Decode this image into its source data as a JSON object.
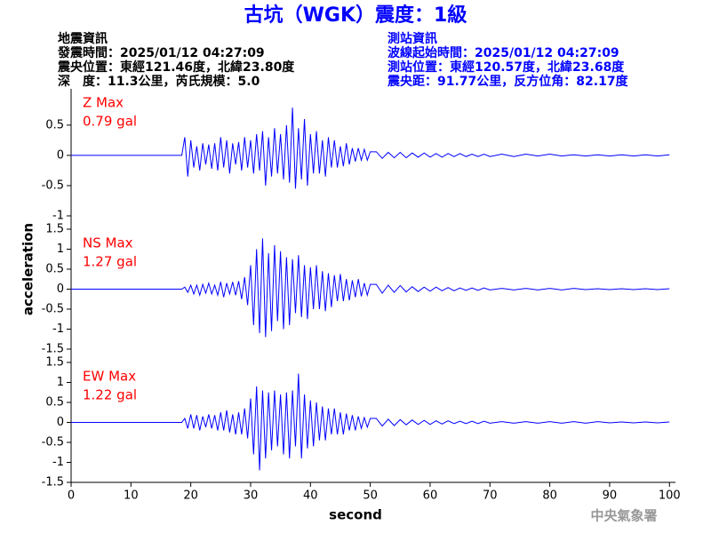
{
  "header": {
    "title": "古坑（WGK）震度：1級",
    "left": [
      "地震資訊",
      "發震時間：2025/01/12 04:27:09",
      "震央位置：東經121.46度，北緯23.80度",
      "深　度：11.3公里，芮氏規模：5.0"
    ],
    "right": [
      "測站資訊",
      "波線起始時間：2025/01/12 04:27:09",
      "測站位置：東經120.57度，北緯23.68度",
      "震央距：91.77公里，反方位角：82.17度"
    ],
    "ylabel": "acceleration",
    "xlabel": "second",
    "watermark": "中央氣象署"
  },
  "chart_data": [
    {
      "type": "line",
      "label": "Z Max",
      "max_label": "0.79 gal",
      "color": "#0000ff",
      "xlim": [
        0,
        101
      ],
      "ylim": [
        -1,
        1.1
      ],
      "yticks": [
        -1,
        -0.5,
        0,
        0.5
      ],
      "x": [
        0,
        10,
        18.5,
        19,
        19.5,
        20,
        20.5,
        21,
        21.5,
        22,
        22.5,
        23,
        23.5,
        24,
        24.5,
        25,
        25.5,
        26,
        26.5,
        27,
        27.5,
        28,
        28.5,
        29,
        29.5,
        30,
        30.5,
        31,
        31.5,
        32,
        32.5,
        33,
        33.5,
        34,
        34.5,
        35,
        35.5,
        36,
        36.5,
        37,
        37.5,
        38,
        38.5,
        39,
        39.5,
        40,
        40.5,
        41,
        41.5,
        42,
        42.5,
        43,
        43.5,
        44,
        44.5,
        45,
        45.5,
        46,
        46.5,
        47,
        47.5,
        48,
        48.5,
        49,
        49.5,
        50,
        51,
        52,
        53,
        54,
        55,
        56,
        57,
        58,
        59,
        60,
        61,
        62,
        63,
        64,
        65,
        66,
        67,
        68,
        69,
        70,
        72,
        74,
        76,
        78,
        80,
        82,
        84,
        86,
        88,
        90,
        92,
        94,
        96,
        98,
        100
      ],
      "values": [
        0,
        0,
        0,
        0.3,
        -0.35,
        0.25,
        -0.2,
        0.15,
        -0.25,
        0.2,
        -0.15,
        0.18,
        -0.22,
        0.2,
        -0.25,
        0.3,
        -0.2,
        0.25,
        -0.3,
        0.2,
        -0.15,
        0.22,
        -0.25,
        0.3,
        -0.2,
        0.25,
        -0.3,
        0.35,
        -0.25,
        0.4,
        -0.5,
        0.3,
        -0.35,
        0.45,
        -0.3,
        0.35,
        -0.4,
        0.5,
        -0.45,
        0.79,
        -0.55,
        0.45,
        -0.4,
        0.6,
        -0.5,
        0.35,
        -0.3,
        0.4,
        -0.3,
        0.25,
        -0.35,
        0.3,
        -0.2,
        0.25,
        -0.2,
        0.15,
        -0.18,
        0.2,
        -0.15,
        0.12,
        -0.1,
        0.12,
        -0.08,
        0.1,
        -0.08,
        0.06,
        0.06,
        -0.05,
        0.05,
        -0.04,
        0.05,
        -0.04,
        0.04,
        -0.03,
        0.04,
        -0.03,
        0.03,
        -0.03,
        0.03,
        -0.02,
        0.03,
        -0.02,
        0.02,
        -0.02,
        0.02,
        -0.02,
        0.02,
        -0.02,
        0.02,
        -0.01,
        0.02,
        -0.01,
        0.01,
        -0.01,
        0.01,
        -0.01,
        0.01,
        -0.01,
        0.01,
        -0.01,
        0.01
      ]
    },
    {
      "type": "line",
      "label": "NS Max",
      "max_label": "1.27 gal",
      "color": "#0000ff",
      "xlim": [
        0,
        101
      ],
      "ylim": [
        -1.5,
        1.5
      ],
      "yticks": [
        -1.5,
        -1,
        -0.5,
        0,
        0.5,
        1,
        1.5
      ],
      "x": [
        0,
        10,
        18.5,
        19,
        19.5,
        20,
        20.5,
        21,
        21.5,
        22,
        22.5,
        23,
        23.5,
        24,
        24.5,
        25,
        25.5,
        26,
        26.5,
        27,
        27.5,
        28,
        28.5,
        29,
        29.5,
        30,
        30.5,
        31,
        31.5,
        32,
        32.5,
        33,
        33.5,
        34,
        34.5,
        35,
        35.5,
        36,
        36.5,
        37,
        37.5,
        38,
        38.5,
        39,
        39.5,
        40,
        40.5,
        41,
        41.5,
        42,
        42.5,
        43,
        43.5,
        44,
        44.5,
        45,
        45.5,
        46,
        46.5,
        47,
        47.5,
        48,
        48.5,
        49,
        49.5,
        50,
        51,
        52,
        53,
        54,
        55,
        56,
        57,
        58,
        59,
        60,
        61,
        62,
        63,
        64,
        65,
        66,
        67,
        68,
        69,
        70,
        72,
        74,
        76,
        78,
        80,
        82,
        84,
        86,
        88,
        90,
        92,
        94,
        96,
        98,
        100
      ],
      "values": [
        0,
        0,
        0,
        0.05,
        -0.08,
        0.1,
        -0.12,
        0.1,
        -0.15,
        0.12,
        -0.1,
        0.15,
        -0.12,
        0.1,
        -0.15,
        0.18,
        -0.2,
        0.15,
        -0.12,
        0.18,
        -0.15,
        0.2,
        -0.25,
        0.3,
        -0.4,
        0.6,
        -0.9,
        1.0,
        -1.1,
        1.27,
        -1.2,
        0.9,
        -1.05,
        1.1,
        -0.8,
        0.95,
        -1.0,
        0.8,
        -0.9,
        0.75,
        -0.6,
        0.85,
        -0.7,
        0.6,
        -0.75,
        0.55,
        -0.5,
        0.6,
        -0.5,
        0.45,
        -0.55,
        0.4,
        -0.45,
        0.35,
        -0.3,
        0.38,
        -0.3,
        0.25,
        -0.28,
        0.22,
        -0.2,
        0.25,
        -0.18,
        0.15,
        -0.15,
        0.12,
        0.12,
        -0.1,
        0.1,
        -0.08,
        0.09,
        -0.07,
        0.06,
        -0.06,
        0.05,
        -0.05,
        0.05,
        -0.04,
        0.04,
        -0.04,
        0.03,
        -0.03,
        0.03,
        -0.03,
        0.03,
        -0.02,
        0.02,
        -0.02,
        0.02,
        -0.02,
        0.02,
        -0.02,
        0.02,
        -0.01,
        0.01,
        -0.01,
        0.01,
        -0.01,
        0.01,
        -0.01,
        0.01
      ]
    },
    {
      "type": "line",
      "label": "EW Max",
      "max_label": "1.22 gal",
      "color": "#0000ff",
      "xlim": [
        0,
        101
      ],
      "ylim": [
        -1.5,
        1.5
      ],
      "yticks": [
        -1.5,
        -1,
        -0.5,
        0,
        0.5,
        1,
        1.5
      ],
      "xticks": [
        0,
        10,
        20,
        30,
        40,
        50,
        60,
        70,
        80,
        90,
        100
      ],
      "x": [
        0,
        10,
        18.5,
        19,
        19.5,
        20,
        20.5,
        21,
        21.5,
        22,
        22.5,
        23,
        23.5,
        24,
        24.5,
        25,
        25.5,
        26,
        26.5,
        27,
        27.5,
        28,
        28.5,
        29,
        29.5,
        30,
        30.5,
        31,
        31.5,
        32,
        32.5,
        33,
        33.5,
        34,
        34.5,
        35,
        35.5,
        36,
        36.5,
        37,
        37.5,
        38,
        38.5,
        39,
        39.5,
        40,
        40.5,
        41,
        41.5,
        42,
        42.5,
        43,
        43.5,
        44,
        44.5,
        45,
        45.5,
        46,
        46.5,
        47,
        47.5,
        48,
        48.5,
        49,
        49.5,
        50,
        51,
        52,
        53,
        54,
        55,
        56,
        57,
        58,
        59,
        60,
        61,
        62,
        63,
        64,
        65,
        66,
        67,
        68,
        69,
        70,
        72,
        74,
        76,
        78,
        80,
        82,
        84,
        86,
        88,
        90,
        92,
        94,
        96,
        98,
        100
      ],
      "values": [
        0,
        0,
        0,
        0.1,
        -0.15,
        0.2,
        -0.15,
        0.18,
        -0.2,
        0.15,
        -0.12,
        0.2,
        -0.15,
        0.18,
        -0.2,
        0.25,
        -0.2,
        0.3,
        -0.25,
        0.2,
        -0.3,
        0.25,
        -0.3,
        0.35,
        -0.4,
        0.6,
        -0.8,
        0.9,
        -1.2,
        0.8,
        -0.9,
        0.75,
        -0.7,
        0.8,
        -0.6,
        0.7,
        -0.8,
        0.75,
        -0.9,
        0.8,
        -0.6,
        1.22,
        -0.9,
        0.7,
        -0.65,
        0.55,
        -0.6,
        0.5,
        -0.45,
        0.4,
        -0.45,
        0.35,
        -0.3,
        0.35,
        -0.3,
        0.25,
        -0.3,
        0.22,
        -0.2,
        0.18,
        -0.2,
        0.15,
        -0.15,
        0.12,
        -0.12,
        0.1,
        0.1,
        -0.09,
        0.08,
        -0.08,
        0.07,
        -0.06,
        0.06,
        -0.05,
        0.05,
        -0.05,
        0.04,
        -0.04,
        0.04,
        -0.03,
        0.03,
        -0.03,
        0.03,
        -0.03,
        0.03,
        -0.02,
        0.02,
        -0.02,
        0.02,
        -0.02,
        0.02,
        -0.02,
        0.02,
        -0.02,
        0.02,
        -0.01,
        0.01,
        -0.01,
        0.01,
        -0.01,
        0.01
      ]
    }
  ]
}
